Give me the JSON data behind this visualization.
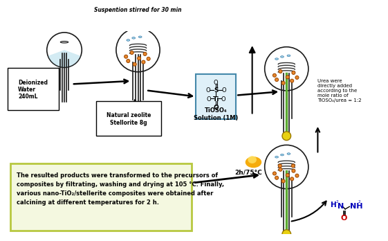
{
  "bg_color": "#ffffff",
  "text_box_text": "The resulted products were transformed to the precursors of\ncomposites by filtrating, washing and drying at 105 °C. Finally,\nvarious nano-TiO₂/stellerite composites were obtained after\ncalcining at different temperatures for 2 h.",
  "text_box_border": "#b8c840",
  "text_box_fill": "#f4f8e0",
  "label_deionized": "Deionized\nWater\n240mL",
  "label_zeolite": "Natural zeolite\nStellorite 8g",
  "label_tioso4": "TiOSO₄\nSolution (1M)",
  "label_suspension": "Suspention stirred for 30 min",
  "label_2h75": "2h/75°C",
  "label_urea": "Urea were\ndirectly added\naccording to the\nmole ratio of\nTiOSO₄/urea = 1:2",
  "flask_outline": "#1a1a1a",
  "orange_color": "#e8872a",
  "green_color": "#5aaa30",
  "yellow_color": "#e8d010",
  "light_blue": "#a8d8e8",
  "arrow_color": "#1a1a1a",
  "red_color": "#cc0000",
  "blue_color": "#0000bb",
  "coil_color": "#333333",
  "stirrer_color": "#888888"
}
